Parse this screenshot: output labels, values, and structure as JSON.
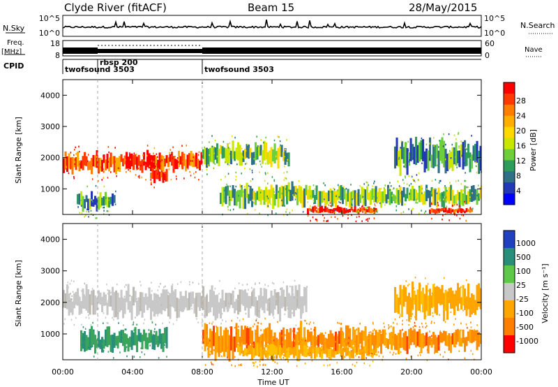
{
  "header": {
    "station": "Clyde River (fitACF)",
    "beam": "Beam 15",
    "date": "28/May/2015"
  },
  "top_panels": {
    "nsky_label": "N.Sky",
    "nsearch_label": "N.Search",
    "noise_ticks": [
      "10^5",
      "10^0"
    ],
    "freq_label_1": "Freq.",
    "freq_label_2": "[MHz]",
    "freq_ticks": [
      "18",
      "8"
    ],
    "nave_ticks": [
      "60",
      "0"
    ],
    "nave_label": "Nave",
    "cpid_label": "CPID",
    "cpid_segments": [
      {
        "name": "twofsound 3503",
        "start_h": 0.0,
        "end_h": 2.0
      },
      {
        "name": "rbsp 200",
        "start_h": 2.0,
        "end_h": 8.0
      },
      {
        "name": "twofsound 3503",
        "start_h": 8.0,
        "end_h": 24.0
      }
    ]
  },
  "axes": {
    "ylabel": "Slant Range [km]",
    "xlabel": "Time UT",
    "y_ticks": [
      "4000",
      "3000",
      "2000",
      "1000"
    ],
    "x_ticks": [
      "00:00",
      "04:00",
      "08:00",
      "12:00",
      "16:00",
      "20:00",
      "00:00"
    ]
  },
  "power_colorbar": {
    "label": "Power [dB]",
    "ticks": [
      "28",
      "24",
      "20",
      "16",
      "12",
      "8",
      "4"
    ],
    "colors": [
      "#ff0000",
      "#ff3a00",
      "#ff7e00",
      "#ffae00",
      "#ffd800",
      "#c8e600",
      "#6fcf3a",
      "#2e9d5c",
      "#2f6f88",
      "#2238b8",
      "#0000ff"
    ]
  },
  "velocity_colorbar": {
    "label": "Velocity [m s⁻¹]",
    "ticks": [
      "1000",
      "500",
      "100",
      "25",
      "-25",
      "-100",
      "-500",
      "-1000"
    ],
    "colors": [
      "#2040c0",
      "#2a8f7a",
      "#5fc84a",
      "#c8c8c8",
      "#ffa500",
      "#ff7e00",
      "#ff0000"
    ]
  },
  "chart_data": [
    {
      "type": "line",
      "title": "",
      "series": [
        {
          "name": "N.Sky"
        },
        {
          "name": "N.Search"
        }
      ],
      "xlim": [
        0,
        24
      ],
      "ylim": [
        1,
        100000
      ],
      "log_y": true
    },
    {
      "type": "line",
      "series": [
        {
          "name": "Freq.",
          "values_mhz_by_interval": [
            {
              "start_h": 0,
              "end_h": 2,
              "value": 11
            },
            {
              "start_h": 2,
              "end_h": 8,
              "value": 10
            },
            {
              "start_h": 8,
              "end_h": 24,
              "value": 11
            }
          ]
        },
        {
          "name": "Nave",
          "values_by_interval": [
            {
              "start_h": 2,
              "end_h": 8,
              "value": 45
            }
          ]
        }
      ]
    },
    {
      "type": "heatmap",
      "name": "Power",
      "xlabel": "Time UT",
      "ylabel": "Slant Range [km]",
      "xlim": [
        0,
        24
      ],
      "ylim": [
        180,
        4500
      ],
      "colorbar": "Power [dB]",
      "bands": [
        {
          "start_h": 0.0,
          "end_h": 8.0,
          "range_km": [
            1500,
            2200
          ],
          "level_db": 24
        },
        {
          "start_h": 5.0,
          "end_h": 6.0,
          "range_km": [
            1200,
            1700
          ],
          "level_db": 28
        },
        {
          "start_h": 0.8,
          "end_h": 3.0,
          "range_km": [
            300,
            900
          ],
          "level_db": 8
        },
        {
          "start_h": 8.0,
          "end_h": 13.0,
          "range_km": [
            1700,
            2500
          ],
          "level_db": 12
        },
        {
          "start_h": 9.0,
          "end_h": 14.0,
          "range_km": [
            400,
            1200
          ],
          "level_db": 12
        },
        {
          "start_h": 14.0,
          "end_h": 18.0,
          "range_km": [
            200,
            450
          ],
          "level_db": 28
        },
        {
          "start_h": 14.0,
          "end_h": 24.0,
          "range_km": [
            450,
            1100
          ],
          "level_db": 12
        },
        {
          "start_h": 19.0,
          "end_h": 24.0,
          "range_km": [
            1500,
            2600
          ],
          "level_db": 8
        },
        {
          "start_h": 21.0,
          "end_h": 23.5,
          "range_km": [
            200,
            400
          ],
          "level_db": 28
        }
      ]
    },
    {
      "type": "heatmap",
      "name": "Velocity",
      "xlabel": "Time UT",
      "ylabel": "Slant Range [km]",
      "xlim": [
        0,
        24
      ],
      "ylim": [
        180,
        4500
      ],
      "colorbar": "Velocity [m s⁻¹]",
      "bands": [
        {
          "start_h": 0.0,
          "end_h": 14.0,
          "range_km": [
            1500,
            2500
          ],
          "velocity": 0
        },
        {
          "start_h": 1.0,
          "end_h": 6.0,
          "range_km": [
            400,
            1200
          ],
          "velocity": 100
        },
        {
          "start_h": 8.0,
          "end_h": 14.0,
          "range_km": [
            200,
            1300
          ],
          "velocity": -100
        },
        {
          "start_h": 10.0,
          "end_h": 18.0,
          "range_km": [
            200,
            700
          ],
          "velocity": -25
        },
        {
          "start_h": 14.0,
          "end_h": 24.0,
          "range_km": [
            400,
            1200
          ],
          "velocity": -100
        },
        {
          "start_h": 19.0,
          "end_h": 24.0,
          "range_km": [
            1500,
            2600
          ],
          "velocity": -25
        }
      ]
    }
  ]
}
